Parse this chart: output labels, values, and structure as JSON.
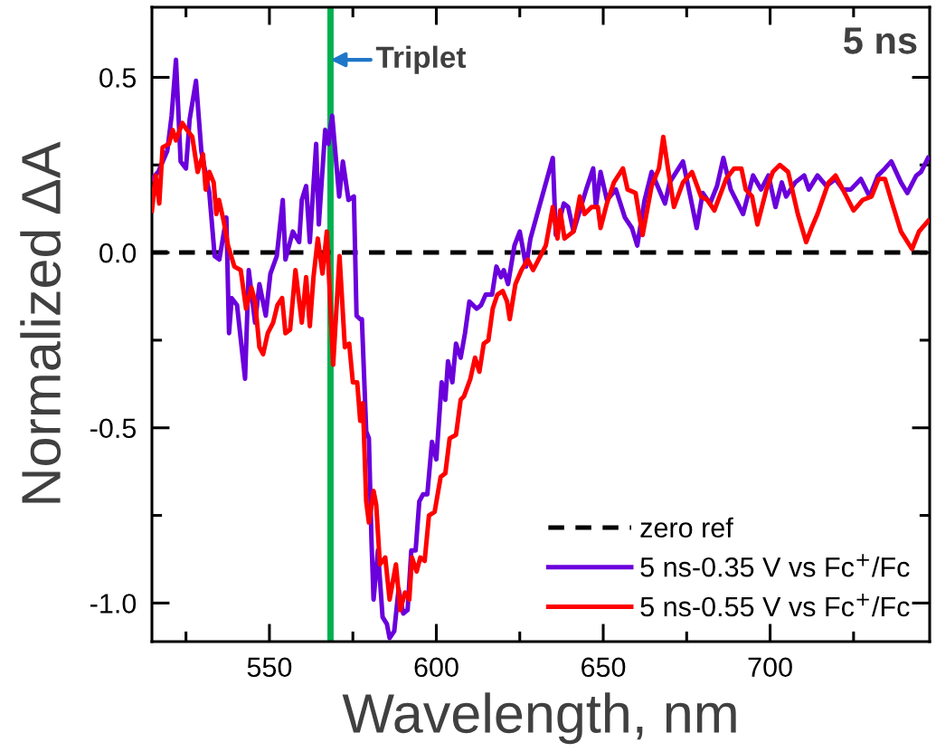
{
  "chart_data": {
    "type": "line",
    "xlabel": "Wavelength, nm",
    "ylabel": "Normalized ΔA",
    "xlim": [
      514.8,
      747.8
    ],
    "ylim": [
      -1.11,
      0.7
    ],
    "xticks": [
      {
        "value": 525,
        "label": null
      },
      550,
      {
        "value": 575,
        "label": null
      },
      600,
      {
        "value": 625,
        "label": null
      },
      650,
      {
        "value": 675,
        "label": null
      },
      700,
      {
        "value": 725,
        "label": null
      }
    ],
    "yticks": [
      {
        "value": -1.0,
        "label": "-1.0"
      },
      {
        "value": -0.75,
        "label": null
      },
      {
        "value": -0.5,
        "label": "-0.5"
      },
      {
        "value": -0.25,
        "label": null
      },
      {
        "value": 0.0,
        "label": "0.0"
      },
      {
        "value": 0.25,
        "label": null
      },
      {
        "value": 0.5,
        "label": "0.5"
      }
    ],
    "grid": false,
    "legend": "bottom right",
    "marker": "none",
    "ref_lines": [
      {
        "axis": "x",
        "value": 568.3,
        "color": "#00b050",
        "line_style": "solid"
      }
    ],
    "annotations": [
      {
        "text": "Triplet",
        "x": 568.3,
        "y": 0.55
      },
      "5 ns"
    ],
    "series": [
      {
        "name": "zero ref",
        "color": "#000000",
        "line_style": "dashed",
        "x": [
          514.8,
          747.8
        ],
        "values": [
          0,
          0
        ]
      },
      {
        "name": "5 ns-0.35 V vs Fc$^{+}$/Fc",
        "color": "#6a00dc",
        "line_style": "solid",
        "x": [
          514.8,
          516.7,
          519.4,
          520.7,
          522.0,
          523.4,
          525.0,
          526.1,
          528.0,
          529.6,
          532.0,
          533.6,
          535.0,
          537.1,
          537.9,
          538.7,
          540.3,
          542.7,
          543.8,
          545.7,
          547.0,
          548.9,
          550.3,
          552.2,
          554.0,
          554.8,
          557.0,
          558.9,
          559.7,
          561.0,
          562.1,
          564.0,
          564.8,
          566.7,
          567.7,
          568.8,
          570.9,
          572.0,
          573.7,
          575.3,
          576.1,
          577.2,
          577.7,
          579.0,
          579.8,
          580.6,
          581.2,
          582.5,
          583.9,
          585.2,
          586.0,
          587.4,
          588.7,
          590.1,
          591.4,
          592.5,
          593.8,
          594.9,
          596.0,
          597.3,
          598.7,
          600.0,
          601.6,
          602.7,
          603.5,
          604.8,
          605.9,
          607.3,
          608.6,
          609.9,
          612.1,
          613.4,
          614.8,
          616.7,
          618.0,
          619.4,
          620.2,
          621.5,
          623.4,
          625.0,
          626.9,
          628.2,
          634.9,
          635.8,
          638.2,
          639.5,
          641.1,
          644.9,
          647.0,
          647.8,
          649.2,
          651.1,
          653.8,
          656.5,
          658.6,
          660.2,
          662.4,
          664.5,
          668.5,
          669.9,
          673.9,
          676.1,
          678.0,
          679.8,
          682.0,
          684.1,
          686.0,
          688.2,
          691.9,
          694.9,
          697.3,
          699.5,
          701.6,
          703.5,
          704.8,
          707.5,
          710.2,
          711.6,
          714.2,
          716.9,
          719.6,
          721.8,
          724.2,
          727.2,
          729.8,
          732.3,
          734.4,
          736.3,
          739.2,
          741.1,
          743.8,
          745.2,
          747.3
        ],
        "values": [
          0.21,
          0.23,
          0.29,
          0.39,
          0.55,
          0.26,
          0.24,
          0.38,
          0.49,
          0.29,
          0.17,
          -0.01,
          -0.02,
          0.1,
          -0.23,
          -0.13,
          -0.15,
          -0.36,
          -0.05,
          -0.2,
          -0.09,
          -0.18,
          -0.06,
          -0.01,
          0.15,
          -0.02,
          0.06,
          0.03,
          0.15,
          0.19,
          0.03,
          0.31,
          0.08,
          0.35,
          0.31,
          0.39,
          0.16,
          0.26,
          0.15,
          0.16,
          -0.18,
          -0.19,
          -0.19,
          -0.51,
          -0.53,
          -0.83,
          -0.99,
          -0.85,
          -1.04,
          -1.06,
          -1.1,
          -1.08,
          -0.96,
          -1.03,
          -1.02,
          -0.85,
          -0.85,
          -0.71,
          -0.69,
          -0.69,
          -0.54,
          -0.59,
          -0.37,
          -0.42,
          -0.31,
          -0.37,
          -0.26,
          -0.3,
          -0.23,
          -0.14,
          -0.16,
          -0.15,
          -0.12,
          -0.12,
          -0.04,
          -0.07,
          -0.05,
          -0.09,
          0.02,
          0.06,
          -0.04,
          0.04,
          0.27,
          0.05,
          0.14,
          0.13,
          0.06,
          0.18,
          0.24,
          0.13,
          0.23,
          0.15,
          0.18,
          0.1,
          0.07,
          0.02,
          0.15,
          0.23,
          0.14,
          0.2,
          0.26,
          0.16,
          0.07,
          0.17,
          0.14,
          0.19,
          0.27,
          0.18,
          0.11,
          0.22,
          0.18,
          0.22,
          0.13,
          0.2,
          0.16,
          0.2,
          0.22,
          0.18,
          0.22,
          0.19,
          0.21,
          0.18,
          0.18,
          0.21,
          0.16,
          0.22,
          0.24,
          0.26,
          0.2,
          0.17,
          0.22,
          0.23,
          0.27
        ]
      },
      {
        "name": "5 ns-0.55 V vs Fc$^{+}$/Fc",
        "color": "#ff0000",
        "line_style": "solid",
        "x": [
          514.8,
          515.9,
          517.0,
          518.0,
          519.9,
          521.0,
          522.0,
          523.9,
          525.3,
          526.9,
          528.5,
          530.1,
          530.9,
          532.0,
          533.3,
          534.1,
          534.9,
          536.3,
          537.6,
          539.5,
          541.4,
          543.0,
          544.6,
          545.7,
          547.0,
          548.1,
          549.5,
          551.1,
          552.4,
          553.8,
          554.8,
          556.2,
          557.8,
          559.7,
          561.0,
          562.1,
          563.2,
          564.5,
          565.9,
          567.2,
          569.1,
          571.0,
          572.6,
          573.9,
          575.0,
          576.3,
          577.2,
          578.0,
          579.0,
          579.8,
          581.2,
          582.0,
          583.1,
          584.7,
          586.0,
          587.9,
          589.2,
          590.6,
          591.9,
          592.7,
          594.1,
          595.2,
          596.5,
          597.8,
          599.5,
          601.3,
          602.7,
          604.0,
          605.9,
          607.3,
          608.3,
          610.2,
          611.6,
          612.9,
          614.2,
          615.6,
          616.9,
          618.3,
          619.9,
          621.2,
          622.0,
          623.7,
          625.5,
          627.4,
          629.0,
          632.8,
          634.9,
          636.3,
          637.1,
          638.4,
          641.1,
          643.0,
          644.4,
          646.5,
          648.4,
          649.2,
          651.1,
          653.2,
          655.9,
          657.3,
          659.7,
          661.8,
          664.5,
          666.7,
          668.0,
          669.4,
          671.2,
          673.9,
          676.6,
          679.3,
          681.2,
          683.3,
          686.8,
          689.2,
          691.4,
          692.7,
          694.6,
          696.2,
          698.9,
          700.8,
          702.9,
          705.4,
          708.3,
          710.8,
          712.4,
          714.2,
          717.5,
          719.6,
          721.8,
          725.0,
          727.7,
          730.4,
          732.5,
          734.4,
          736.6,
          739.2,
          742.5,
          744.6,
          747.3
        ],
        "values": [
          0.12,
          0.22,
          0.14,
          0.3,
          0.31,
          0.35,
          0.32,
          0.37,
          0.35,
          0.33,
          0.23,
          0.28,
          0.18,
          0.23,
          0.2,
          0.11,
          0.15,
          0.09,
          0.02,
          -0.04,
          -0.05,
          -0.16,
          -0.1,
          -0.14,
          -0.27,
          -0.29,
          -0.23,
          -0.2,
          -0.15,
          -0.13,
          -0.23,
          -0.22,
          -0.05,
          -0.2,
          -0.07,
          -0.21,
          -0.07,
          0.04,
          -0.06,
          0.06,
          -0.32,
          -0.01,
          -0.27,
          -0.26,
          -0.37,
          -0.37,
          -0.48,
          -0.43,
          -0.71,
          -0.77,
          -0.68,
          -0.72,
          -0.89,
          -0.87,
          -0.99,
          -0.89,
          -1.02,
          -0.97,
          -0.99,
          -0.87,
          -0.91,
          -0.87,
          -0.88,
          -0.75,
          -0.74,
          -0.64,
          -0.63,
          -0.53,
          -0.52,
          -0.42,
          -0.41,
          -0.36,
          -0.3,
          -0.34,
          -0.26,
          -0.25,
          -0.16,
          -0.12,
          -0.11,
          -0.14,
          -0.19,
          -0.09,
          -0.05,
          -0.02,
          -0.05,
          0.02,
          0.13,
          0.04,
          0.12,
          0.04,
          0.06,
          0.16,
          0.11,
          0.13,
          0.13,
          0.07,
          0.14,
          0.2,
          0.24,
          0.18,
          0.17,
          0.05,
          0.19,
          0.24,
          0.33,
          0.24,
          0.13,
          0.2,
          0.23,
          0.16,
          0.15,
          0.12,
          0.21,
          0.24,
          0.24,
          0.18,
          0.16,
          0.08,
          0.18,
          0.23,
          0.25,
          0.23,
          0.11,
          0.03,
          0.07,
          0.11,
          0.2,
          0.22,
          0.18,
          0.12,
          0.15,
          0.16,
          0.21,
          0.21,
          0.14,
          0.06,
          0.01,
          0.06,
          0.09
        ]
      }
    ]
  }
}
